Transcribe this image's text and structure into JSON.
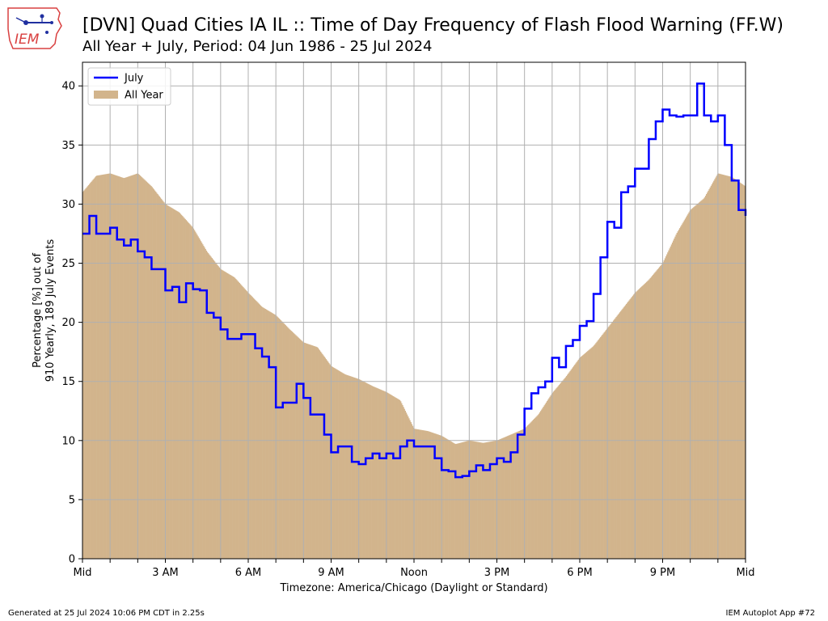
{
  "header": {
    "title": "[DVN] Quad Cities IA IL :: Time of Day Frequency of Flash Flood Warning (FF.W)",
    "subtitle": "All Year + July, Period: 04 Jun 1986 - 25 Jul 2024"
  },
  "logo": {
    "text": "IEM"
  },
  "footer": {
    "generated": "Generated at 25 Jul 2024 10:06 PM CDT in 2.25s",
    "app": "IEM Autoplot App #72"
  },
  "chart_data": {
    "type": "area",
    "title": "[DVN] Quad Cities IA IL :: Time of Day Frequency of Flash Flood Warning (FF.W)",
    "subtitle": "All Year + July, Period: 04 Jun 1986 - 25 Jul 2024",
    "xlabel": "Timezone: America/Chicago (Daylight or Standard)",
    "ylabel": "Percentage [%] out of\n910 Yearly, 189 July Events",
    "ylabel_lines": [
      "Percentage [%] out of",
      "910 Yearly, 189 July Events"
    ],
    "xlim": [
      0,
      24
    ],
    "ylim": [
      0,
      42
    ],
    "grid": true,
    "legend_position": "top-left",
    "x_ticks": [
      {
        "value": 0,
        "label": "Mid"
      },
      {
        "value": 3,
        "label": "3 AM"
      },
      {
        "value": 6,
        "label": "6 AM"
      },
      {
        "value": 9,
        "label": "9 AM"
      },
      {
        "value": 12,
        "label": "Noon"
      },
      {
        "value": 15,
        "label": "3 PM"
      },
      {
        "value": 18,
        "label": "6 PM"
      },
      {
        "value": 21,
        "label": "9 PM"
      },
      {
        "value": 24,
        "label": "Mid"
      }
    ],
    "y_ticks": [
      0,
      5,
      10,
      15,
      20,
      25,
      30,
      35,
      40
    ],
    "series": [
      {
        "name": "All Year",
        "kind": "bars",
        "color": "#d2b48c",
        "x": [
          0,
          0.5,
          1,
          1.5,
          2,
          2.5,
          3,
          3.5,
          4,
          4.5,
          5,
          5.5,
          6,
          6.5,
          7,
          7.5,
          8,
          8.5,
          9,
          9.5,
          10,
          10.5,
          11,
          11.5,
          12,
          12.5,
          13,
          13.5,
          14,
          14.5,
          15,
          15.5,
          16,
          16.5,
          17,
          17.5,
          18,
          18.5,
          19,
          19.5,
          20,
          20.5,
          21,
          21.5,
          22,
          22.5,
          23,
          23.5,
          24
        ],
        "values": [
          31,
          32.4,
          32.6,
          32.2,
          32.6,
          31.5,
          30,
          29.3,
          28,
          26,
          24.5,
          23.8,
          22.5,
          21.3,
          20.6,
          19.4,
          18.3,
          17.9,
          16.3,
          15.6,
          15.2,
          14.6,
          14.1,
          13.4,
          11,
          10.8,
          10.4,
          9.7,
          10,
          9.8,
          10,
          10.5,
          11,
          12.2,
          14,
          15.4,
          17,
          18,
          19.5,
          21,
          22.5,
          23.6,
          25,
          27.5,
          29.5,
          30.5,
          32.6,
          32.3,
          31.5
        ]
      },
      {
        "name": "July",
        "kind": "step",
        "color": "#0000ff",
        "x": [
          0,
          0.25,
          0.5,
          0.75,
          1,
          1.25,
          1.5,
          1.75,
          2,
          2.25,
          2.5,
          2.75,
          3,
          3.25,
          3.5,
          3.75,
          4,
          4.25,
          4.5,
          4.75,
          5,
          5.25,
          5.5,
          5.75,
          6,
          6.25,
          6.5,
          6.75,
          7,
          7.25,
          7.5,
          7.75,
          8,
          8.25,
          8.5,
          8.75,
          9,
          9.25,
          9.5,
          9.75,
          10,
          10.25,
          10.5,
          10.75,
          11,
          11.25,
          11.5,
          11.75,
          12,
          12.25,
          12.5,
          12.75,
          13,
          13.25,
          13.5,
          13.75,
          14,
          14.25,
          14.5,
          14.75,
          15,
          15.25,
          15.5,
          15.75,
          16,
          16.25,
          16.5,
          16.75,
          17,
          17.25,
          17.5,
          17.75,
          18,
          18.25,
          18.5,
          18.75,
          19,
          19.25,
          19.5,
          19.75,
          20,
          20.25,
          20.5,
          20.75,
          21,
          21.25,
          21.5,
          21.75,
          22,
          22.25,
          22.5,
          22.75,
          23,
          23.25,
          23.5,
          23.75,
          24
        ],
        "values": [
          27.5,
          29,
          27.5,
          27.5,
          28,
          27,
          26.5,
          27,
          26,
          25.5,
          24.5,
          24.5,
          22.7,
          23,
          21.7,
          23.3,
          22.8,
          22.7,
          20.8,
          20.4,
          19.4,
          18.6,
          18.6,
          19,
          19,
          17.8,
          17.1,
          16.2,
          12.8,
          13.2,
          13.2,
          14.8,
          13.6,
          12.2,
          12.2,
          10.5,
          9,
          9.5,
          9.5,
          8.2,
          8,
          8.5,
          8.9,
          8.5,
          8.9,
          8.5,
          9.5,
          10,
          9.5,
          9.5,
          9.5,
          8.5,
          7.5,
          7.4,
          6.9,
          7,
          7.4,
          7.9,
          7.5,
          8,
          8.5,
          8.2,
          9,
          10.5,
          12.7,
          14,
          14.5,
          15,
          17,
          16.2,
          18,
          18.5,
          19.7,
          20.1,
          22.4,
          25.5,
          28.5,
          28,
          31,
          31.5,
          33,
          33,
          35.5,
          37,
          38,
          37.5,
          37.4,
          37.5,
          37.5,
          40.2,
          37.5,
          37,
          37.5,
          35,
          32,
          29.5,
          29
        ]
      }
    ]
  }
}
